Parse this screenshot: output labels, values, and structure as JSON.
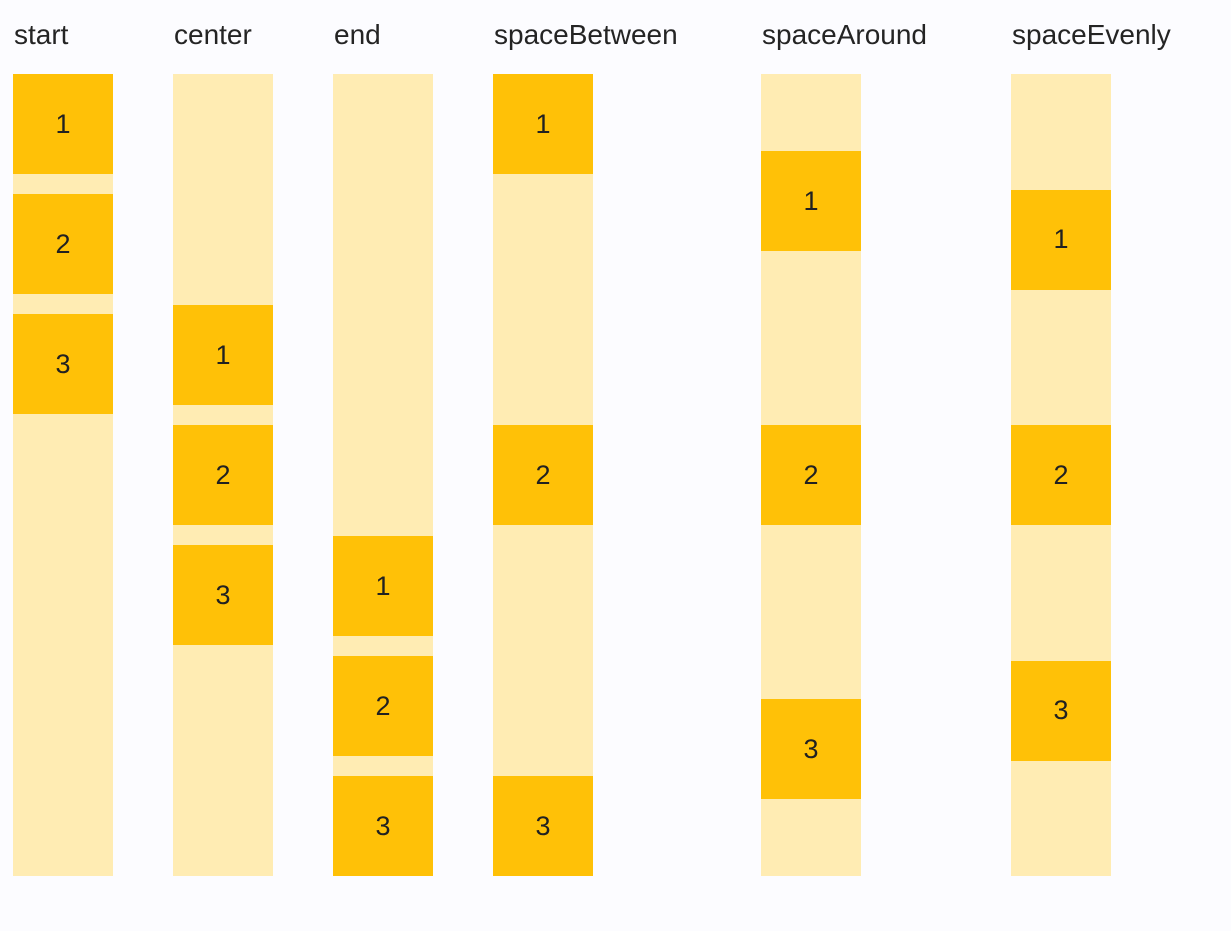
{
  "page": {
    "background_color": "#FCFCFF",
    "track_color": "#FFECB3",
    "item_color": "#FFC107",
    "label_text_color": "#242424",
    "item_text_color": "#212121"
  },
  "columns": [
    {
      "label": "start",
      "justify": "flex-start",
      "items": [
        "1",
        "2",
        "3"
      ]
    },
    {
      "label": "center",
      "justify": "center",
      "items": [
        "1",
        "2",
        "3"
      ]
    },
    {
      "label": "end",
      "justify": "flex-end",
      "items": [
        "1",
        "2",
        "3"
      ]
    },
    {
      "label": "spaceBetween",
      "justify": "space-between",
      "items": [
        "1",
        "2",
        "3"
      ]
    },
    {
      "label": "spaceAround",
      "justify": "space-around",
      "items": [
        "1",
        "2",
        "3"
      ]
    },
    {
      "label": "spaceEvenly",
      "justify": "space-evenly",
      "items": [
        "1",
        "2",
        "3"
      ]
    }
  ]
}
